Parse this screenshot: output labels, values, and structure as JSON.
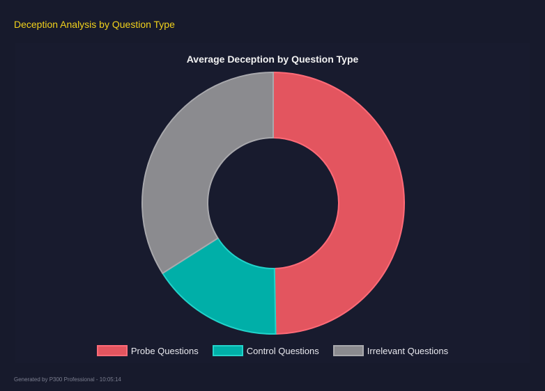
{
  "header": {
    "title": "Deception Analysis by Question Type"
  },
  "chart_data": {
    "type": "pie",
    "variant": "doughnut",
    "title": "Average Deception by Question Type",
    "categories": [
      "Probe Questions",
      "Control Questions",
      "Irrelevant Questions"
    ],
    "values": [
      49.7,
      16.3,
      34.0
    ],
    "colors": [
      "#e3555f",
      "#00afa8",
      "#8b8b8f"
    ],
    "border_colors": [
      "#ff6b78",
      "#22d3ca",
      "#a9a9ad"
    ],
    "legend": "bottom"
  },
  "footer": {
    "text": "Generated by P300 Professional - 10:05:14"
  }
}
